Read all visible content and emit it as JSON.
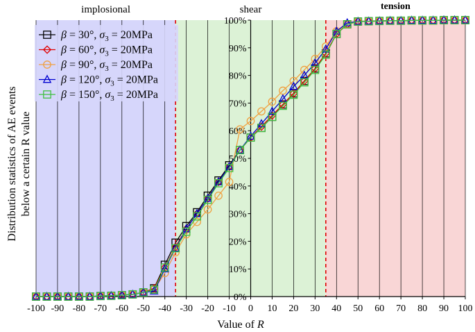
{
  "chart_data": {
    "type": "line",
    "xlabel_prefix": "Value of",
    "xlabel_var": "R",
    "ylabel_line1": "Distribution statistics of AE events",
    "ylabel_line2": "below a certain R value",
    "xlim": [
      -100,
      100
    ],
    "ylim": [
      0,
      100
    ],
    "xticks": [
      "-100",
      "-90",
      "-80",
      "-70",
      "-60",
      "-50",
      "-40",
      "-30",
      "-20",
      "-10",
      "0",
      "10",
      "20",
      "30",
      "40",
      "50",
      "60",
      "70",
      "80",
      "90",
      "100"
    ],
    "yticks": [
      "0%",
      "10%",
      "20%",
      "30%",
      "40%",
      "50%",
      "60%",
      "70%",
      "80%",
      "90%",
      "100%"
    ],
    "grid": "vertical",
    "legend_position": "top-left",
    "regions": [
      {
        "label": "implosional",
        "from": -100,
        "to": -35,
        "color": "#d6d6fb",
        "bold": false
      },
      {
        "label": "shear",
        "from": -35,
        "to": 35,
        "color": "#dcf2d6",
        "bold": false
      },
      {
        "label": "tension",
        "from": 35,
        "to": 100,
        "color": "#f9d6d6",
        "bold": true
      }
    ],
    "boundaries": [
      -35,
      35
    ],
    "x": [
      -100,
      -95,
      -90,
      -85,
      -80,
      -75,
      -70,
      -65,
      -60,
      -55,
      -50,
      -45,
      -40,
      -35,
      -30,
      -25,
      -20,
      -15,
      -10,
      -5,
      0,
      5,
      10,
      15,
      20,
      25,
      30,
      35,
      40,
      45,
      50,
      55,
      60,
      65,
      70,
      75,
      80,
      85,
      90,
      95,
      100
    ],
    "series": [
      {
        "name": "β = 30°, σ3 = 20MPa",
        "beta": "30°",
        "color": "#000000",
        "marker": "square",
        "values": [
          0,
          0,
          0,
          0,
          0,
          0,
          0.2,
          0.3,
          0.5,
          0.8,
          1.5,
          3,
          11.5,
          19.5,
          25.5,
          30.5,
          36.5,
          42,
          47.5,
          53,
          57.5,
          61,
          65,
          69.5,
          73.5,
          78,
          82.5,
          88,
          95,
          98.5,
          99.5,
          99.6,
          99.7,
          99.8,
          99.8,
          99.9,
          99.9,
          99.9,
          100,
          100,
          100
        ]
      },
      {
        "name": "β = 60°, σ3 = 20MPa",
        "beta": "60°",
        "color": "#e00000",
        "marker": "diamond",
        "values": [
          0,
          0,
          0,
          0,
          0,
          0,
          0.2,
          0.3,
          0.5,
          0.8,
          1.5,
          3,
          10.5,
          18,
          24.5,
          30,
          35.5,
          41.5,
          47,
          53,
          57.5,
          61.5,
          65.5,
          69.5,
          73.5,
          78,
          82.5,
          88,
          95,
          98.5,
          99.5,
          99.6,
          99.7,
          99.8,
          99.8,
          99.9,
          99.9,
          99.9,
          100,
          100,
          100
        ]
      },
      {
        "name": "β = 90°, σ3 = 20MPa",
        "beta": "90°",
        "color": "#f0a040",
        "marker": "circle",
        "values": [
          0,
          0,
          0,
          0,
          0,
          0,
          0.2,
          0.3,
          0.5,
          0.8,
          1.5,
          2.5,
          8.5,
          16,
          22.5,
          27,
          31.5,
          36.5,
          41.5,
          60.5,
          63.5,
          67,
          70.5,
          74.5,
          78,
          82,
          86,
          90.5,
          96,
          98.5,
          99.5,
          99.6,
          99.7,
          99.8,
          99.8,
          99.9,
          99.9,
          99.9,
          100,
          100,
          100
        ]
      },
      {
        "name": "β = 120°, σ3 = 20MPa",
        "beta": "120°",
        "color": "#0000d0",
        "marker": "triangle",
        "values": [
          0,
          0,
          0,
          0,
          0,
          0,
          0.2,
          0.3,
          0.5,
          0.8,
          1.5,
          2,
          10,
          17.5,
          24.5,
          30,
          35.5,
          41.5,
          47,
          53,
          58,
          62.5,
          67,
          71.5,
          76,
          80,
          84.5,
          89.5,
          96,
          99,
          99.5,
          99.6,
          99.7,
          99.8,
          99.8,
          99.9,
          99.9,
          99.9,
          100,
          100,
          100
        ]
      },
      {
        "name": "β = 150°, σ3 = 20MPa",
        "beta": "150°",
        "color": "#40c040",
        "marker": "square",
        "values": [
          0,
          0,
          0,
          0,
          0,
          0,
          0.2,
          0.3,
          0.5,
          0.8,
          1.5,
          2.5,
          10.5,
          17.5,
          23.5,
          29,
          35,
          41,
          46.5,
          53,
          57.5,
          61,
          65,
          69,
          73,
          77.5,
          82,
          87.5,
          95,
          98.5,
          99.5,
          99.6,
          99.7,
          99.8,
          99.8,
          99.9,
          99.9,
          99.9,
          100,
          100,
          100
        ]
      }
    ]
  }
}
